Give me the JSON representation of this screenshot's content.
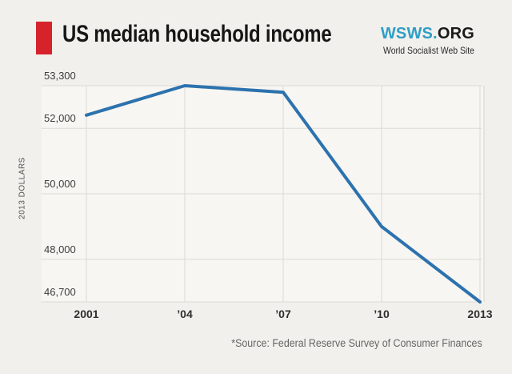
{
  "header": {
    "title": "US median household income",
    "logo": {
      "primary": "WSWS.",
      "secondary": "ORG",
      "tagline": "World Socialist Web Site",
      "blue": "#2E9EC7"
    },
    "accent_color": "#D6232B"
  },
  "chart_data": {
    "type": "line",
    "title": "US median household income",
    "ylabel": "2013 DOLLARS",
    "xlabel": "",
    "categories": [
      2001,
      2004,
      2007,
      2010,
      2013
    ],
    "series": [
      {
        "name": "US median household income (2013 dollars)",
        "values": [
          52400,
          53300,
          53100,
          49000,
          46700
        ]
      }
    ],
    "xtick_labels": [
      "2001",
      "’04",
      "’07",
      "’10",
      "2013"
    ],
    "ytick_values": [
      53300,
      52000,
      50000,
      48000,
      46700
    ],
    "ytick_labels": [
      "53,300",
      "52,000",
      "50,000",
      "48,000",
      "46,700"
    ],
    "ylim": [
      46700,
      53300
    ],
    "xlim": [
      2001,
      2013
    ],
    "grid": true,
    "legend_position": "none",
    "line_color": "#2C72AE",
    "gridline_color": "#dcdad5",
    "plot_bg": "#f7f6f2"
  },
  "footer": {
    "source": "*Source: Federal Reserve Survey of Consumer Finances"
  }
}
